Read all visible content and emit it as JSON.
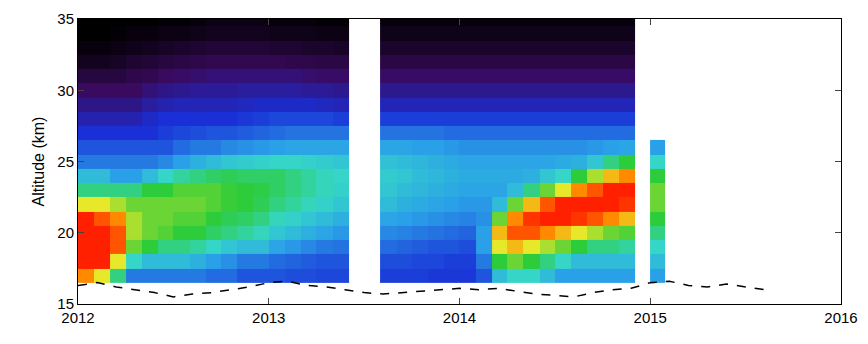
{
  "chart_data": {
    "type": "heatmap",
    "y_label": "Altitude (km)",
    "xlim": [
      2012,
      2016
    ],
    "xticks": [
      2012,
      2013,
      2014,
      2015,
      2016
    ],
    "ylim": [
      15,
      35
    ],
    "yticks": [
      15,
      20,
      25,
      30,
      35
    ],
    "grid": false,
    "zlim": [
      0,
      10
    ],
    "x": [
      2012.04,
      2012.13,
      2012.21,
      2012.29,
      2012.38,
      2012.46,
      2012.54,
      2012.63,
      2012.71,
      2012.79,
      2012.88,
      2012.96,
      2013.04,
      2013.13,
      2013.21,
      2013.29,
      2013.38,
      2013.46,
      2013.54,
      2013.63,
      2013.71,
      2013.79,
      2013.88,
      2013.96,
      2014.04,
      2014.13,
      2014.21,
      2014.29,
      2014.38,
      2014.46,
      2014.54,
      2014.63,
      2014.71,
      2014.79,
      2014.88,
      2014.96,
      2015.04
    ],
    "y": [
      17,
      18,
      19,
      20,
      21,
      22,
      23,
      24,
      25,
      26,
      27,
      28,
      29,
      30,
      31,
      32,
      33,
      34,
      35
    ],
    "z": [
      [
        9,
        10,
        10,
        10,
        10,
        8,
        6,
        5,
        4,
        3.5,
        3,
        2.5,
        2,
        1.5,
        1,
        0.5,
        0.2,
        0,
        0
      ],
      [
        8,
        10,
        10,
        10,
        9.5,
        8,
        6,
        5,
        4,
        3.5,
        3,
        2.5,
        2,
        1.5,
        1,
        0.5,
        0.2,
        0,
        0
      ],
      [
        6,
        8,
        9.5,
        9.5,
        9,
        7.5,
        6,
        4.5,
        4,
        3.5,
        3,
        2.5,
        2,
        1.5,
        1,
        0.6,
        0.3,
        0.1,
        0
      ],
      [
        4,
        5.5,
        7,
        7.5,
        7.5,
        7,
        6,
        4.5,
        4,
        3.5,
        3,
        2.5,
        2,
        1.5,
        1.2,
        0.8,
        0.4,
        0.2,
        0
      ],
      [
        4,
        5,
        6.5,
        7,
        7,
        7,
        6.5,
        5,
        4,
        3.5,
        3,
        2.8,
        2.3,
        1.8,
        1.3,
        0.9,
        0.5,
        0.2,
        0
      ],
      [
        4,
        5,
        6,
        6.8,
        7,
        7,
        6.5,
        5.5,
        4.2,
        3.5,
        3.2,
        3,
        2.5,
        2,
        1.5,
        1,
        0.6,
        0.3,
        0.1
      ],
      [
        4,
        5,
        6,
        6.5,
        6.8,
        7,
        6.8,
        5.8,
        4.5,
        3.8,
        3.3,
        3,
        2.6,
        2.1,
        1.6,
        1.1,
        0.7,
        0.3,
        0.1
      ],
      [
        4,
        4.8,
        5.8,
        6.5,
        6.8,
        7,
        6.8,
        6,
        4.8,
        4,
        3.4,
        3,
        2.6,
        2.2,
        1.7,
        1.2,
        0.8,
        0.4,
        0.2
      ],
      [
        3.8,
        4.5,
        5.5,
        6.2,
        6.5,
        6.8,
        6.8,
        6.2,
        5,
        4,
        3.5,
        3,
        2.6,
        2.2,
        1.8,
        1.3,
        0.9,
        0.5,
        0.3
      ],
      [
        3.8,
        4.3,
        5.2,
        6,
        6.3,
        6.6,
        6.6,
        6.3,
        5.2,
        4.2,
        3.5,
        3,
        2.6,
        2.2,
        1.8,
        1.3,
        0.9,
        0.5,
        0.3
      ],
      [
        3.5,
        4,
        5,
        5.8,
        6.2,
        6.5,
        6.5,
        6.2,
        5.3,
        4.3,
        3.6,
        3.1,
        2.7,
        2.3,
        1.8,
        1.3,
        0.9,
        0.5,
        0.3
      ],
      [
        3.5,
        4,
        5,
        5.6,
        6,
        6.3,
        6.4,
        6.2,
        5.4,
        4.4,
        3.7,
        3.2,
        2.8,
        2.3,
        1.8,
        1.3,
        0.9,
        0.5,
        0.3
      ],
      [
        3.5,
        3.8,
        4.6,
        5.2,
        5.6,
        6,
        6.2,
        6.2,
        5.5,
        4.5,
        3.8,
        3.3,
        2.8,
        2.3,
        1.8,
        1.3,
        0.8,
        0.4,
        0.2
      ],
      [
        3.4,
        3.7,
        4.4,
        5,
        5.4,
        5.8,
        6,
        6,
        5.5,
        4.6,
        3.9,
        3.3,
        2.8,
        2.3,
        1.8,
        1.2,
        0.8,
        0.4,
        0.2
      ],
      [
        3.4,
        3.6,
        4.2,
        4.8,
        5.2,
        5.6,
        5.8,
        5.8,
        5.4,
        4.6,
        3.9,
        3.3,
        2.8,
        2.2,
        1.7,
        1.2,
        0.7,
        0.4,
        0.2
      ],
      [
        3.3,
        3.5,
        4,
        4.6,
        5,
        5.4,
        5.6,
        5.6,
        5.3,
        4.6,
        3.9,
        3.3,
        2.7,
        2.2,
        1.6,
        1.1,
        0.7,
        0.3,
        0.1
      ],
      [
        3.3,
        3.5,
        3.9,
        4.4,
        4.8,
        5.2,
        5.4,
        5.5,
        5.2,
        4.6,
        3.9,
        3.2,
        2.6,
        2.1,
        1.6,
        1.1,
        0.6,
        0.3,
        0.1
      ],
      null,
      null,
      [
        3.2,
        3.4,
        3.8,
        4.2,
        4.6,
        5,
        5.2,
        5.3,
        5.1,
        4.6,
        3.9,
        3.2,
        2.6,
        2.1,
        1.6,
        1.1,
        0.7,
        0.4,
        0.2
      ],
      [
        3.2,
        3.4,
        3.7,
        4.1,
        4.5,
        4.8,
        5,
        5.2,
        5,
        4.6,
        3.9,
        3.2,
        2.6,
        2.1,
        1.6,
        1.1,
        0.7,
        0.4,
        0.2
      ],
      [
        3.2,
        3.3,
        3.6,
        4,
        4.4,
        4.7,
        4.9,
        5,
        4.9,
        4.5,
        3.9,
        3.2,
        2.6,
        2.1,
        1.6,
        1.1,
        0.7,
        0.4,
        0.2
      ],
      [
        3.1,
        3.3,
        3.5,
        3.9,
        4.3,
        4.6,
        4.8,
        4.9,
        4.8,
        4.5,
        3.9,
        3.2,
        2.6,
        2.1,
        1.6,
        1.1,
        0.7,
        0.4,
        0.2
      ],
      [
        3.1,
        3.2,
        3.5,
        3.8,
        4.2,
        4.5,
        4.7,
        4.8,
        4.7,
        4.4,
        3.8,
        3.2,
        2.6,
        2.1,
        1.6,
        1.1,
        0.7,
        0.4,
        0.2
      ],
      [
        3.1,
        3.2,
        3.4,
        3.7,
        4.1,
        4.4,
        4.6,
        4.7,
        4.6,
        4.3,
        3.8,
        3.2,
        2.6,
        2.1,
        1.6,
        1.1,
        0.7,
        0.4,
        0.2
      ],
      [
        3.5,
        4,
        4.5,
        4.5,
        4.3,
        4.4,
        4.6,
        4.7,
        4.6,
        4.3,
        3.8,
        3.2,
        2.6,
        2.1,
        1.6,
        1.1,
        0.7,
        0.4,
        0.2
      ],
      [
        5,
        6.5,
        8,
        8.5,
        7,
        5,
        4.6,
        4.7,
        4.6,
        4.3,
        3.8,
        3.2,
        2.6,
        2.1,
        1.6,
        1.1,
        0.7,
        0.4,
        0.2
      ],
      [
        5.5,
        7,
        8.5,
        9.5,
        9,
        7,
        5,
        4.7,
        4.6,
        4.3,
        3.8,
        3.2,
        2.6,
        2.1,
        1.6,
        1.1,
        0.7,
        0.4,
        0.2
      ],
      [
        5.5,
        6.5,
        8,
        9.5,
        9.8,
        8.5,
        6,
        4.8,
        4.6,
        4.3,
        3.8,
        3.2,
        2.6,
        2.1,
        1.6,
        1.1,
        0.7,
        0.4,
        0.2
      ],
      [
        5,
        6,
        7.5,
        9,
        10,
        9.5,
        7,
        5.2,
        4.6,
        4.3,
        3.8,
        3.2,
        2.6,
        2.1,
        1.6,
        1.1,
        0.7,
        0.4,
        0.2
      ],
      [
        4.5,
        5.5,
        7,
        8.5,
        10,
        10,
        8,
        5.5,
        4.7,
        4.3,
        3.8,
        3.2,
        2.6,
        2.1,
        1.6,
        1.1,
        0.7,
        0.4,
        0.2
      ],
      [
        4.5,
        5,
        6.5,
        8,
        9.8,
        10,
        9,
        6.5,
        4.8,
        4.3,
        3.8,
        3.2,
        2.6,
        2.1,
        1.6,
        1.1,
        0.7,
        0.4,
        0.2
      ],
      [
        4.5,
        5,
        6,
        7.5,
        9.5,
        10,
        9.5,
        7.5,
        5.2,
        4.4,
        3.8,
        3.2,
        2.6,
        2.1,
        1.6,
        1.1,
        0.7,
        0.4,
        0.2
      ],
      [
        4.5,
        5,
        6,
        7,
        9,
        10,
        10,
        8.5,
        6,
        4.5,
        3.8,
        3.2,
        2.6,
        2.1,
        1.6,
        1.1,
        0.7,
        0.4,
        0.2
      ],
      [
        4.5,
        5,
        5.8,
        6.8,
        8.5,
        9.8,
        10,
        9,
        6.5,
        4.6,
        3.8,
        3.2,
        2.6,
        2.1,
        1.6,
        1.1,
        0.7,
        0.4,
        0.2
      ],
      null,
      [
        4.5,
        5,
        5.5,
        6,
        6.5,
        7,
        7,
        6.5,
        5.5,
        4.5,
        null,
        null,
        null,
        null,
        null,
        null,
        null,
        null,
        null
      ]
    ],
    "series": [
      {
        "type": "line",
        "color": "#000000",
        "line_style": "dashed",
        "x": [
          2012.0,
          2012.1,
          2012.2,
          2012.3,
          2012.4,
          2012.5,
          2012.6,
          2012.7,
          2012.8,
          2012.9,
          2013.0,
          2013.1,
          2013.2,
          2013.3,
          2013.4,
          2013.5,
          2013.6,
          2013.7,
          2013.8,
          2013.9,
          2014.0,
          2014.1,
          2014.2,
          2014.3,
          2014.4,
          2014.5,
          2014.6,
          2014.7,
          2014.8,
          2014.9,
          2015.0,
          2015.1,
          2015.2,
          2015.3,
          2015.4,
          2015.5,
          2015.6
        ],
        "values": [
          16.3,
          16.5,
          16.2,
          16.0,
          15.8,
          15.5,
          15.7,
          15.8,
          16.0,
          16.2,
          16.5,
          16.6,
          16.3,
          16.2,
          16.0,
          15.8,
          15.7,
          15.8,
          15.9,
          16.0,
          16.1,
          16.0,
          16.1,
          15.9,
          15.7,
          15.6,
          15.5,
          15.8,
          16.0,
          16.1,
          16.5,
          16.6,
          16.3,
          16.2,
          16.4,
          16.2,
          16.0
        ]
      }
    ]
  }
}
